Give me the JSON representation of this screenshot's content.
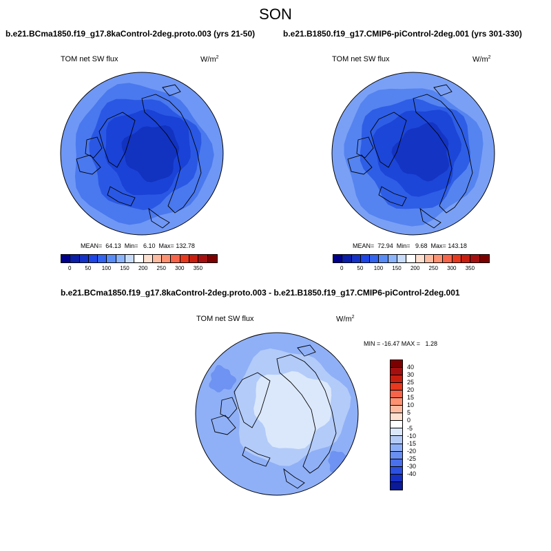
{
  "season": "SON",
  "colors": {
    "background": "#ffffff",
    "outline": "#000000"
  },
  "panels": [
    {
      "title": "b.e21.BCma1850.f19_g17.8kaControl-2deg.proto.003 (yrs 21-50)",
      "variable": "TOM net SW flux",
      "units": "W/m",
      "units_sup": "2",
      "stats": "MEAN=  64.13  Min=   6.10  Max= 132.78",
      "colorbar": {
        "colors": [
          "#00008b",
          "#0a1ea8",
          "#1432c8",
          "#1e46e6",
          "#3264f0",
          "#5a8cf5",
          "#8cb4fa",
          "#c8dcfa",
          "#ffffff",
          "#fde0d0",
          "#fcbba1",
          "#fc9272",
          "#f7644a",
          "#e8381e",
          "#c81e0f",
          "#a50f0f",
          "#7d0000"
        ],
        "tick_labels": [
          "0",
          "50",
          "100",
          "150",
          "200",
          "250",
          "300",
          "350"
        ]
      },
      "map_fields": {
        "outer": "#6f97f5",
        "ring2": "#4a78ee",
        "ring3": "#2a58e4",
        "ring4": "#1a42d6",
        "core": "#1232c0"
      }
    },
    {
      "title": "b.e21.B1850.f19_g17.CMIP6-piControl-2deg.001 (yrs 301-330)",
      "variable": "TOM net SW flux",
      "units": "W/m",
      "units_sup": "2",
      "stats": "MEAN=  72.94  Min=   9.68  Max= 143.18",
      "colorbar": {
        "colors": [
          "#00008b",
          "#0a1ea8",
          "#1432c8",
          "#1e46e6",
          "#3264f0",
          "#5a8cf5",
          "#8cb4fa",
          "#c8dcfa",
          "#ffffff",
          "#fde0d0",
          "#fcbba1",
          "#fc9272",
          "#f7644a",
          "#e8381e",
          "#c81e0f",
          "#a50f0f",
          "#7d0000"
        ],
        "tick_labels": [
          "0",
          "50",
          "100",
          "150",
          "200",
          "250",
          "300",
          "350"
        ]
      },
      "map_fields": {
        "outer": "#7aa0f6",
        "ring2": "#5584f0",
        "ring3": "#2e5ee6",
        "ring4": "#1c46d8",
        "core": "#1434c4"
      }
    }
  ],
  "difference": {
    "title": "b.e21.BCma1850.f19_g17.8kaControl-2deg.proto.003 - b.e21.B1850.f19_g17.CMIP6-piControl-2deg.001",
    "variable": "TOM net SW flux",
    "units": "W/m",
    "units_sup": "2",
    "stats": "MIN = -16.47 MAX =   1.28",
    "colorbar": {
      "colors": [
        "#7d0000",
        "#a50f0f",
        "#c81e0f",
        "#e8381e",
        "#f7644a",
        "#fc9272",
        "#fcbba1",
        "#fde0d0",
        "#ffffff",
        "#dbe8fb",
        "#b4cbf8",
        "#8caef6",
        "#6a8ff2",
        "#4a70ec",
        "#2c50e0",
        "#1630c4",
        "#0a1a98"
      ],
      "tick_labels": [
        "40",
        "30",
        "25",
        "20",
        "15",
        "10",
        "5",
        "0",
        "-5",
        "-10",
        "-15",
        "-20",
        "-25",
        "-30",
        "-40"
      ]
    },
    "map_fields": {
      "outer": "#8fb0f7",
      "mid": "#b3cbf9",
      "core": "#dbe8fb",
      "patch": "#6e93f2"
    }
  }
}
